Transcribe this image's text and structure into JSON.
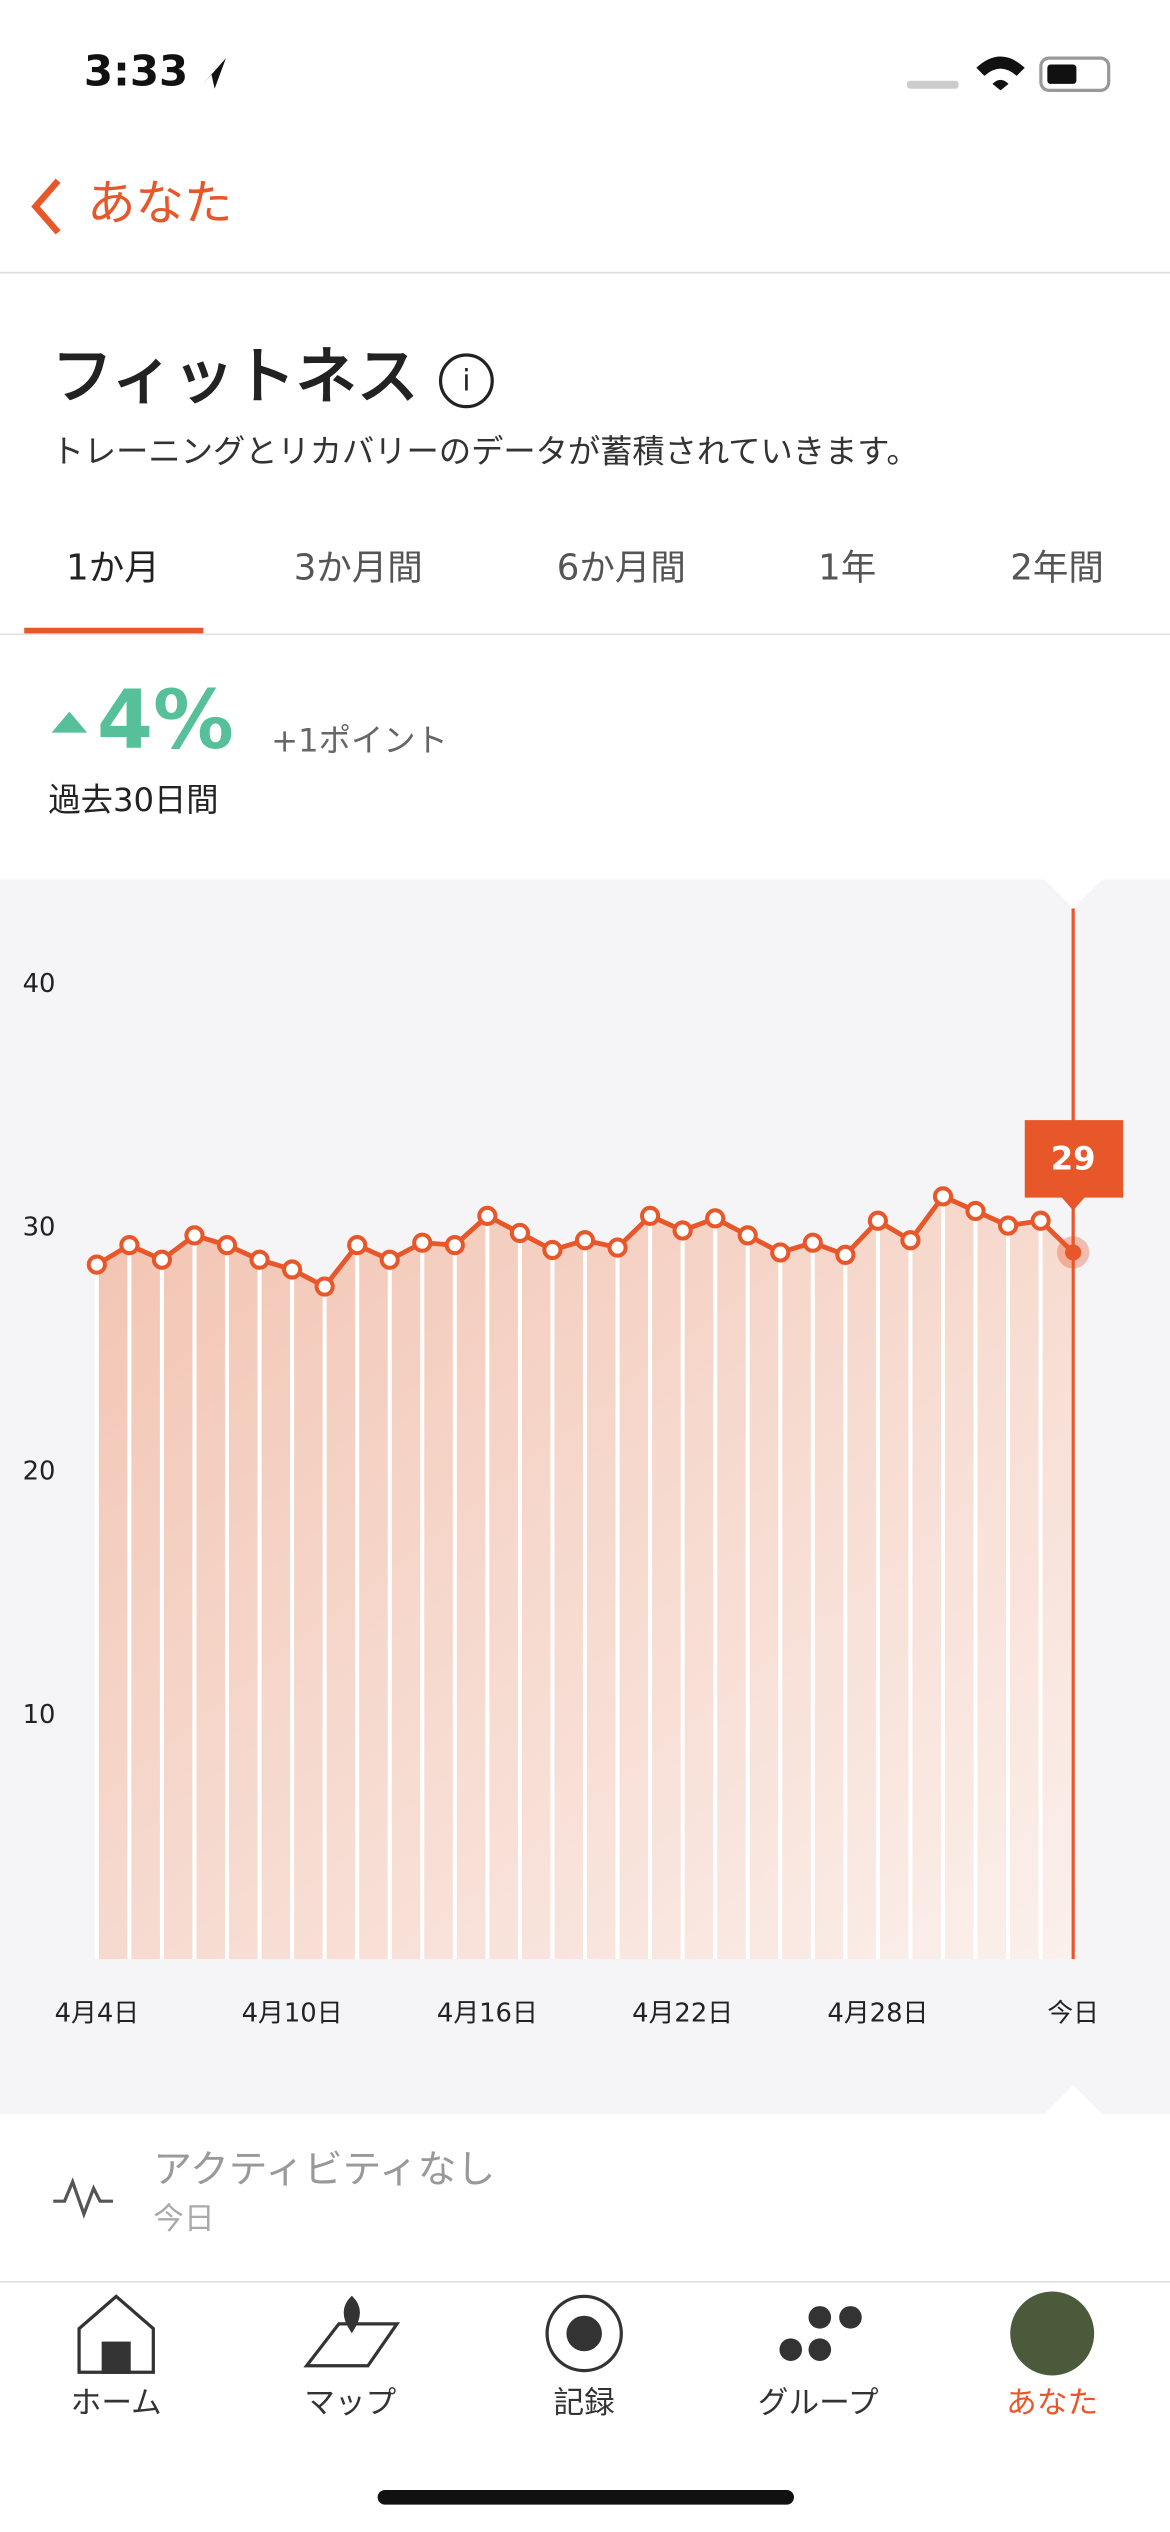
{
  "status_bar": {
    "time": "3:33"
  },
  "nav": {
    "back_label": "あなた"
  },
  "header": {
    "title": "フィットネス",
    "subtitle": "トレーニングとリカバリーのデータが蓄積されていきます。"
  },
  "tabs": [
    "1か月",
    "3か月間",
    "6か月間",
    "1年",
    "2年間"
  ],
  "summary": {
    "change": "4%",
    "points": "+1ポイント",
    "period": "過去30日間"
  },
  "chart_data": {
    "type": "line",
    "color": "#e8572a",
    "categories": [
      "4月4日",
      null,
      null,
      null,
      null,
      null,
      "4月10日",
      null,
      null,
      null,
      null,
      null,
      "4月16日",
      null,
      null,
      null,
      null,
      null,
      "4月22日",
      null,
      null,
      null,
      null,
      null,
      "4月28日",
      null,
      null,
      null,
      null,
      null,
      "今日"
    ],
    "values": [
      28.5,
      29.3,
      28.7,
      29.7,
      29.3,
      28.7,
      28.3,
      27.6,
      29.3,
      28.7,
      29.4,
      29.3,
      30.5,
      29.8,
      29.1,
      29.5,
      29.2,
      30.5,
      29.9,
      30.4,
      29.7,
      29.0,
      29.4,
      28.9,
      30.3,
      29.5,
      31.3,
      30.7,
      30.1,
      30.3,
      29
    ],
    "ylim": [
      0,
      40
    ],
    "yticks": [
      10,
      20,
      30,
      40
    ]
  },
  "activity": {
    "title": "アクティビティなし",
    "date": "今日"
  },
  "bottom_nav": [
    "ホーム",
    "マップ",
    "記録",
    "グループ",
    "あなた"
  ]
}
